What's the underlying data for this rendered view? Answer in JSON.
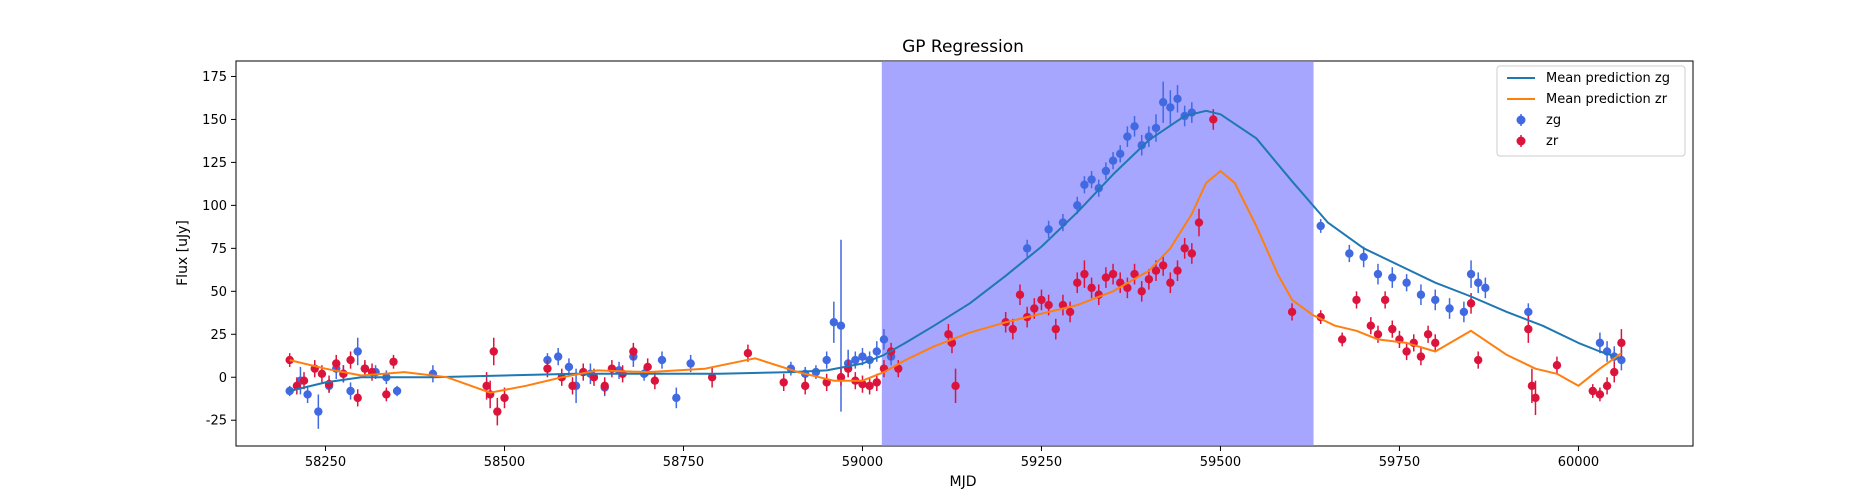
{
  "chart_data": {
    "type": "scatter",
    "title": "GP Regression",
    "xlabel": "MJD",
    "ylabel": "Flux [uJy]",
    "xlim": [
      58125,
      60160
    ],
    "ylim": [
      -40,
      184
    ],
    "xticks": [
      58250,
      58500,
      58750,
      59000,
      59250,
      59500,
      59750,
      60000
    ],
    "yticks": [
      -25,
      0,
      25,
      50,
      75,
      100,
      125,
      150,
      175
    ],
    "grid": false,
    "legend_position": "top-right",
    "colors": {
      "zg": "#1f77b4",
      "zr": "#ff7f0e",
      "zg_points": "#4169e1",
      "zr_points": "#dc143c",
      "span": "#8080ff"
    },
    "shaded_region": {
      "x_start": 59027,
      "x_end": 59630
    },
    "series": [
      {
        "name": "Mean prediction zg",
        "kind": "line",
        "color": "#1f77b4",
        "x": [
          58200,
          58250,
          58300,
          58400,
          58500,
          58600,
          58700,
          58800,
          58900,
          58950,
          59000,
          59030,
          59060,
          59100,
          59150,
          59200,
          59250,
          59300,
          59350,
          59400,
          59450,
          59480,
          59500,
          59550,
          59600,
          59650,
          59700,
          59750,
          59800,
          59850,
          59900,
          59950,
          60000,
          60030,
          60060
        ],
        "y": [
          -8,
          -3,
          0,
          0,
          1,
          2,
          2,
          2,
          3,
          4,
          8,
          13,
          20,
          30,
          43,
          59,
          76,
          96,
          118,
          138,
          152,
          155,
          153,
          139,
          114,
          90,
          75,
          65,
          55,
          47,
          38,
          30,
          20,
          15,
          11
        ]
      },
      {
        "name": "Mean prediction zr",
        "kind": "line",
        "color": "#ff7f0e",
        "x": [
          58200,
          58250,
          58300,
          58360,
          58420,
          58480,
          58530,
          58580,
          58630,
          58700,
          58780,
          58850,
          58910,
          58960,
          59000,
          59030,
          59060,
          59100,
          59150,
          59200,
          59250,
          59300,
          59350,
          59400,
          59430,
          59460,
          59480,
          59500,
          59520,
          59550,
          59580,
          59600,
          59630,
          59660,
          59690,
          59720,
          59760,
          59800,
          59850,
          59900,
          59940,
          59970,
          60000,
          60030,
          60060
        ],
        "y": [
          10,
          5,
          1,
          3,
          0,
          -9,
          -5,
          0,
          4,
          3,
          5,
          11,
          3,
          -2,
          -2,
          3,
          10,
          18,
          26,
          32,
          37,
          42,
          50,
          62,
          75,
          95,
          113,
          120,
          113,
          88,
          60,
          45,
          36,
          30,
          27,
          22,
          20,
          15,
          27,
          13,
          5,
          2,
          -5,
          5,
          14
        ]
      },
      {
        "name": "zg",
        "kind": "points",
        "color": "#4169e1",
        "x": [
          58200,
          58215,
          58225,
          58240,
          58255,
          58265,
          58275,
          58285,
          58295,
          58305,
          58320,
          58335,
          58350,
          58400,
          58560,
          58575,
          58590,
          58600,
          58620,
          58640,
          58660,
          58680,
          58695,
          58720,
          58740,
          58760,
          58900,
          58920,
          58935,
          58950,
          58960,
          58970,
          58980,
          58990,
          59000,
          59010,
          59020,
          59030,
          59040,
          59230,
          59260,
          59280,
          59300,
          59310,
          59320,
          59330,
          59340,
          59350,
          59360,
          59370,
          59380,
          59390,
          59400,
          59410,
          59420,
          59430,
          59440,
          59450,
          59460,
          59640,
          59680,
          59700,
          59720,
          59740,
          59760,
          59780,
          59800,
          59820,
          59840,
          59850,
          59860,
          59870,
          59930,
          60030,
          60040,
          60050,
          60060
        ],
        "y": [
          -8,
          -2,
          -10,
          -20,
          -5,
          5,
          2,
          -8,
          15,
          5,
          3,
          0,
          -8,
          2,
          10,
          12,
          6,
          -5,
          2,
          -6,
          4,
          12,
          2,
          10,
          -12,
          8,
          5,
          2,
          3,
          10,
          32,
          30,
          8,
          10,
          12,
          10,
          15,
          22,
          12,
          75,
          86,
          90,
          100,
          112,
          115,
          110,
          120,
          126,
          130,
          140,
          146,
          135,
          140,
          145,
          160,
          157,
          162,
          152,
          154,
          88,
          72,
          70,
          60,
          58,
          55,
          48,
          45,
          40,
          38,
          60,
          55,
          52,
          38,
          20,
          15,
          12,
          10
        ],
        "err": [
          3,
          8,
          5,
          10,
          4,
          6,
          5,
          5,
          8,
          4,
          4,
          4,
          3,
          5,
          4,
          5,
          5,
          10,
          6,
          5,
          5,
          6,
          4,
          5,
          6,
          5,
          4,
          4,
          4,
          5,
          12,
          50,
          8,
          5,
          5,
          5,
          6,
          6,
          5,
          5,
          5,
          5,
          5,
          5,
          5,
          5,
          5,
          5,
          5,
          6,
          6,
          6,
          6,
          8,
          12,
          10,
          8,
          6,
          6,
          4,
          5,
          6,
          6,
          6,
          5,
          6,
          6,
          6,
          6,
          8,
          6,
          6,
          5,
          6,
          6,
          6,
          6
        ]
      },
      {
        "name": "zr",
        "kind": "points",
        "color": "#dc143c",
        "x": [
          58200,
          58210,
          58220,
          58235,
          58245,
          58255,
          58265,
          58275,
          58285,
          58295,
          58305,
          58315,
          58335,
          58345,
          58475,
          58480,
          58485,
          58490,
          58500,
          58560,
          58580,
          58595,
          58610,
          58625,
          58640,
          58650,
          58665,
          58680,
          58700,
          58710,
          58790,
          58840,
          58890,
          58920,
          58950,
          58970,
          58980,
          58990,
          59000,
          59010,
          59020,
          59030,
          59040,
          59050,
          59120,
          59125,
          59130,
          59200,
          59210,
          59220,
          59230,
          59240,
          59250,
          59260,
          59270,
          59280,
          59290,
          59300,
          59310,
          59320,
          59330,
          59340,
          59350,
          59360,
          59370,
          59380,
          59390,
          59400,
          59410,
          59420,
          59430,
          59440,
          59450,
          59460,
          59470,
          59490,
          59600,
          59640,
          59670,
          59690,
          59710,
          59720,
          59730,
          59740,
          59750,
          59760,
          59770,
          59780,
          59790,
          59800,
          59850,
          59860,
          59930,
          59935,
          59940,
          59970,
          60020,
          60030,
          60040,
          60050,
          60060
        ],
        "y": [
          10,
          -5,
          -2,
          5,
          2,
          -4,
          8,
          2,
          10,
          -12,
          5,
          3,
          -10,
          9,
          -5,
          -10,
          15,
          -20,
          -12,
          5,
          0,
          -5,
          3,
          0,
          -5,
          5,
          2,
          15,
          6,
          -2,
          0,
          14,
          -3,
          -5,
          -3,
          0,
          5,
          -2,
          -4,
          -5,
          -3,
          5,
          15,
          5,
          25,
          20,
          -5,
          32,
          28,
          48,
          35,
          40,
          45,
          42,
          28,
          42,
          38,
          55,
          60,
          52,
          48,
          58,
          60,
          55,
          52,
          60,
          50,
          57,
          62,
          65,
          55,
          62,
          75,
          72,
          90,
          150,
          38,
          35,
          22,
          45,
          30,
          25,
          45,
          28,
          22,
          15,
          20,
          12,
          25,
          20,
          43,
          10,
          28,
          -5,
          -12,
          7,
          -8,
          -10,
          -5,
          3,
          20
        ],
        "err": [
          4,
          5,
          5,
          5,
          5,
          5,
          5,
          5,
          5,
          5,
          5,
          5,
          4,
          4,
          8,
          8,
          8,
          8,
          6,
          5,
          5,
          5,
          5,
          5,
          5,
          5,
          5,
          5,
          5,
          5,
          6,
          5,
          5,
          5,
          5,
          5,
          5,
          5,
          5,
          5,
          5,
          5,
          5,
          5,
          6,
          6,
          10,
          6,
          6,
          6,
          6,
          6,
          6,
          6,
          6,
          6,
          6,
          6,
          8,
          6,
          6,
          6,
          6,
          6,
          6,
          6,
          6,
          6,
          6,
          6,
          6,
          6,
          6,
          6,
          8,
          6,
          5,
          4,
          4,
          5,
          5,
          5,
          5,
          5,
          5,
          5,
          5,
          5,
          5,
          5,
          6,
          5,
          8,
          10,
          10,
          5,
          4,
          4,
          5,
          6,
          8
        ]
      }
    ],
    "legend": [
      "Mean prediction zg",
      "Mean prediction zr",
      "zg",
      "zr"
    ]
  }
}
